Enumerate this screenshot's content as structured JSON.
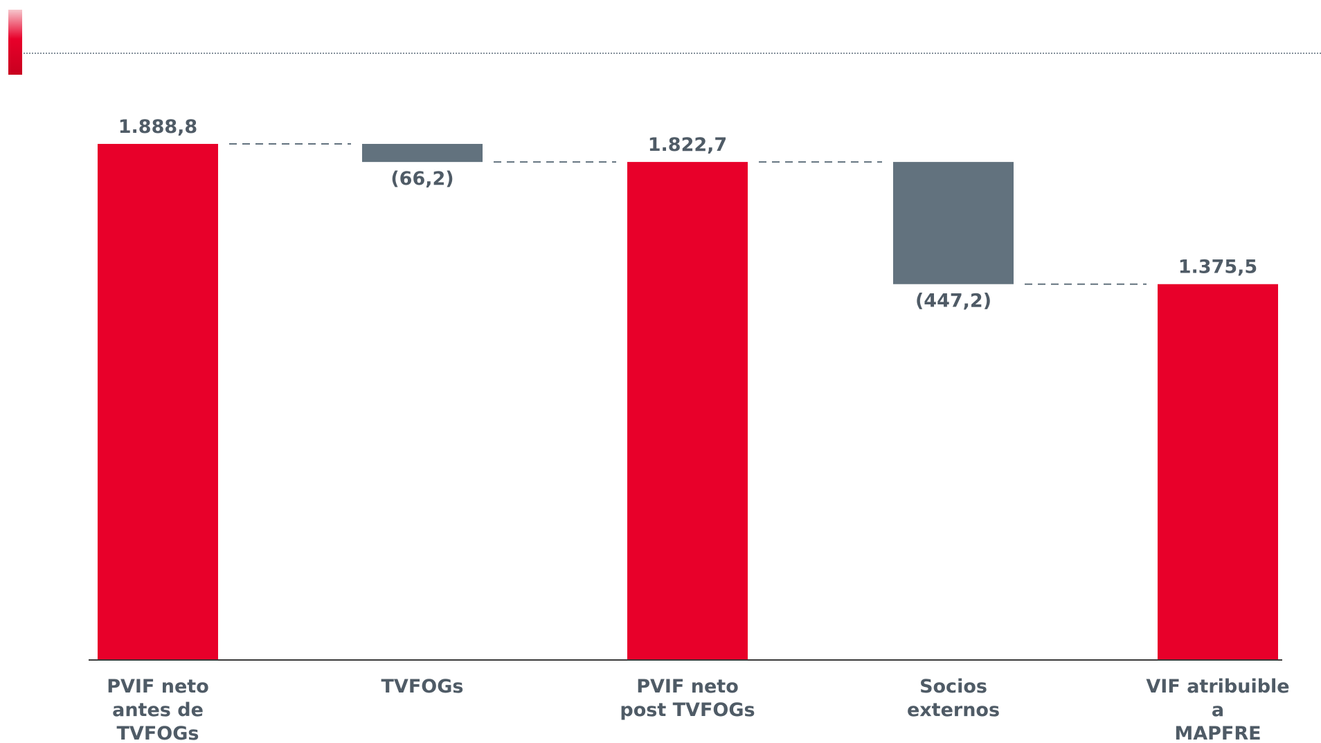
{
  "colors": {
    "total_bar": "#E8002A",
    "delta_bar": "#62727E",
    "label_text": "#4F5B66",
    "connector": "#62727E",
    "baseline": "#3A3A3A",
    "header_dots": "#5A6A78"
  },
  "chart_data": {
    "type": "bar",
    "subtype": "waterfall",
    "title": "",
    "xlabel": "",
    "ylabel": "",
    "ylim": [
      0,
      1888.8
    ],
    "grid": false,
    "categories": [
      [
        "PVIF neto",
        "antes de",
        "TVFOGs"
      ],
      [
        "TVFOGs"
      ],
      [
        "PVIF neto",
        "post TVFOGs"
      ],
      [
        "Socios",
        "externos"
      ],
      [
        "VIF atribuible",
        "a",
        "MAPFRE"
      ]
    ],
    "bars": [
      {
        "kind": "total",
        "start": 0,
        "end": 1888.8,
        "label": "1.888,8"
      },
      {
        "kind": "delta",
        "start": 1888.8,
        "end": 1822.6,
        "label": "(66,2)"
      },
      {
        "kind": "total",
        "start": 0,
        "end": 1822.7,
        "label": "1.822,7"
      },
      {
        "kind": "delta",
        "start": 1822.7,
        "end": 1375.5,
        "label": "(447,2)"
      },
      {
        "kind": "total",
        "start": 0,
        "end": 1375.5,
        "label": "1.375,5"
      }
    ]
  }
}
